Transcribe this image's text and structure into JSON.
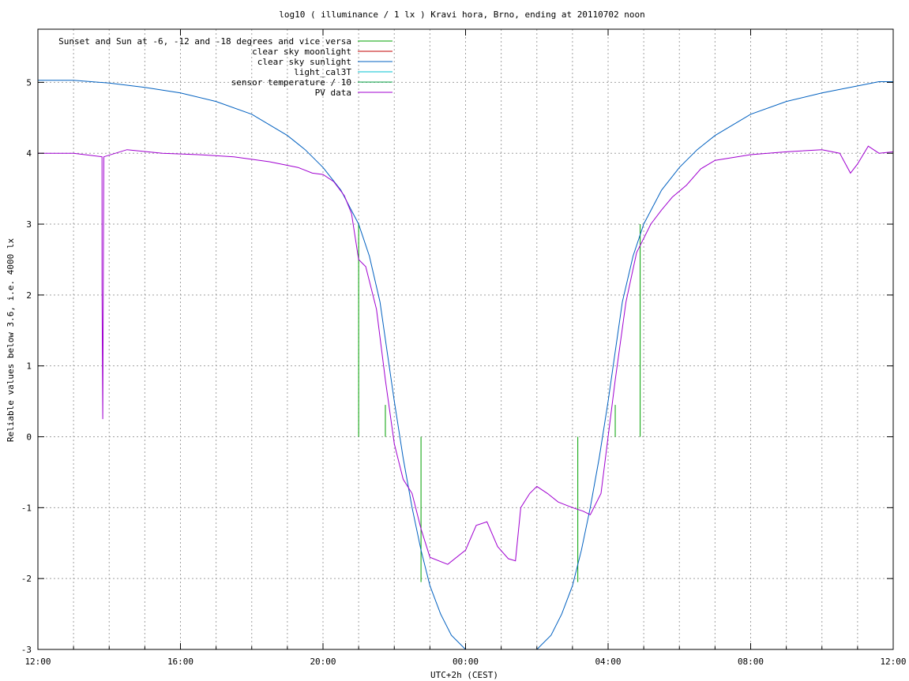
{
  "chart_data": {
    "type": "line",
    "title": "log10 ( illuminance / 1 lx ) Kravi hora, Brno, ending at 20110702 noon",
    "xlabel": "UTC+2h (CEST)",
    "ylabel": "Reliable values below 3.6, i.e. 4000 lx",
    "xlim_hours": [
      0,
      24
    ],
    "ylim": [
      -3,
      5.75
    ],
    "x_ticks": [
      {
        "h": 0,
        "label": "12:00"
      },
      {
        "h": 4,
        "label": "16:00"
      },
      {
        "h": 8,
        "label": "20:00"
      },
      {
        "h": 12,
        "label": "00:00"
      },
      {
        "h": 16,
        "label": "04:00"
      },
      {
        "h": 20,
        "label": "08:00"
      },
      {
        "h": 24,
        "label": "12:00"
      }
    ],
    "y_ticks": [
      {
        "v": 5,
        "label": "5"
      },
      {
        "v": 4,
        "label": "4"
      },
      {
        "v": 3,
        "label": "3"
      },
      {
        "v": 2,
        "label": "2"
      },
      {
        "v": 1,
        "label": "1"
      },
      {
        "v": 0,
        "label": "0"
      },
      {
        "v": -1,
        "label": "-1"
      },
      {
        "v": -2,
        "label": "-2"
      },
      {
        "v": -3,
        "label": "-3"
      }
    ],
    "grid": true,
    "legend_position": "top-left",
    "series": [
      {
        "name": "Sunset and Sun at -6, -12 and -18 degrees and vice versa",
        "color": "#00a000",
        "kind": "impulses",
        "points": [
          [
            9.0,
            3.0
          ],
          [
            9.75,
            0.45
          ],
          [
            10.75,
            -2.05
          ],
          [
            15.15,
            -2.05
          ],
          [
            16.2,
            0.45
          ],
          [
            16.9,
            3.0
          ]
        ]
      },
      {
        "name": "clear sky moonlight",
        "color": "#c00000",
        "points": []
      },
      {
        "name": "clear sky sunlight",
        "color": "#0060c0",
        "points": [
          [
            0,
            5.03
          ],
          [
            1,
            5.03
          ],
          [
            2,
            4.99
          ],
          [
            3,
            4.93
          ],
          [
            4,
            4.85
          ],
          [
            5,
            4.73
          ],
          [
            6,
            4.55
          ],
          [
            7,
            4.25
          ],
          [
            7.5,
            4.05
          ],
          [
            8,
            3.8
          ],
          [
            8.5,
            3.48
          ],
          [
            9,
            3.0
          ],
          [
            9.3,
            2.55
          ],
          [
            9.6,
            1.9
          ],
          [
            9.8,
            1.2
          ],
          [
            10,
            0.5
          ],
          [
            10.25,
            -0.3
          ],
          [
            10.5,
            -1.0
          ],
          [
            10.75,
            -1.6
          ],
          [
            11,
            -2.1
          ],
          [
            11.3,
            -2.5
          ],
          [
            11.6,
            -2.8
          ],
          [
            12,
            -3.0
          ],
          [
            12.5,
            -3.2
          ],
          [
            13,
            -3.25
          ],
          [
            13.5,
            -3.2
          ],
          [
            14,
            -3.0
          ],
          [
            14.4,
            -2.8
          ],
          [
            14.7,
            -2.5
          ],
          [
            15,
            -2.1
          ],
          [
            15.25,
            -1.6
          ],
          [
            15.5,
            -1.0
          ],
          [
            15.75,
            -0.3
          ],
          [
            16,
            0.5
          ],
          [
            16.2,
            1.2
          ],
          [
            16.4,
            1.9
          ],
          [
            16.7,
            2.55
          ],
          [
            17,
            3.0
          ],
          [
            17.5,
            3.48
          ],
          [
            18,
            3.8
          ],
          [
            18.5,
            4.05
          ],
          [
            19,
            4.25
          ],
          [
            20,
            4.55
          ],
          [
            21,
            4.73
          ],
          [
            22,
            4.85
          ],
          [
            23,
            4.95
          ],
          [
            23.6,
            5.01
          ],
          [
            24,
            5.01
          ]
        ]
      },
      {
        "name": "light_cal3T",
        "color": "#00c0d0",
        "points": []
      },
      {
        "name": "sensor temperature / 10",
        "color": "#00a040",
        "points": []
      },
      {
        "name": "PV data",
        "color": "#a000d0",
        "points": [
          [
            0,
            4.0
          ],
          [
            1,
            4.0
          ],
          [
            1.8,
            3.95
          ],
          [
            1.8,
            2.1
          ],
          [
            1.82,
            0.25
          ],
          [
            1.85,
            3.95
          ],
          [
            2.5,
            4.05
          ],
          [
            3.5,
            4.0
          ],
          [
            4.5,
            3.98
          ],
          [
            5.5,
            3.95
          ],
          [
            6.5,
            3.88
          ],
          [
            7.3,
            3.8
          ],
          [
            7.7,
            3.72
          ],
          [
            8,
            3.7
          ],
          [
            8.3,
            3.6
          ],
          [
            8.6,
            3.4
          ],
          [
            8.8,
            3.15
          ],
          [
            9.0,
            2.5
          ],
          [
            9.2,
            2.4
          ],
          [
            9.5,
            1.8
          ],
          [
            9.75,
            0.8
          ],
          [
            10,
            -0.1
          ],
          [
            10.25,
            -0.6
          ],
          [
            10.5,
            -0.8
          ],
          [
            10.75,
            -1.3
          ],
          [
            11,
            -1.7
          ],
          [
            11.5,
            -1.8
          ],
          [
            12,
            -1.6
          ],
          [
            12.3,
            -1.25
          ],
          [
            12.6,
            -1.2
          ],
          [
            12.9,
            -1.55
          ],
          [
            13.2,
            -1.72
          ],
          [
            13.4,
            -1.75
          ],
          [
            13.55,
            -1.0
          ],
          [
            13.8,
            -0.8
          ],
          [
            14,
            -0.7
          ],
          [
            14.3,
            -0.8
          ],
          [
            14.6,
            -0.92
          ],
          [
            15,
            -1.0
          ],
          [
            15.3,
            -1.05
          ],
          [
            15.5,
            -1.1
          ],
          [
            15.8,
            -0.8
          ],
          [
            16,
            0.0
          ],
          [
            16.2,
            0.8
          ],
          [
            16.5,
            1.9
          ],
          [
            16.8,
            2.6
          ],
          [
            17.2,
            3.0
          ],
          [
            17.5,
            3.2
          ],
          [
            17.8,
            3.38
          ],
          [
            18.2,
            3.55
          ],
          [
            18.6,
            3.78
          ],
          [
            19,
            3.9
          ],
          [
            20,
            3.98
          ],
          [
            21,
            4.02
          ],
          [
            22,
            4.05
          ],
          [
            22.5,
            4.0
          ],
          [
            22.8,
            3.72
          ],
          [
            23,
            3.85
          ],
          [
            23.3,
            4.1
          ],
          [
            23.6,
            4.0
          ],
          [
            24,
            4.02
          ]
        ]
      }
    ]
  },
  "colors": {
    "grid": "#a0a0a0",
    "axis": "#000000",
    "background": "#ffffff"
  }
}
